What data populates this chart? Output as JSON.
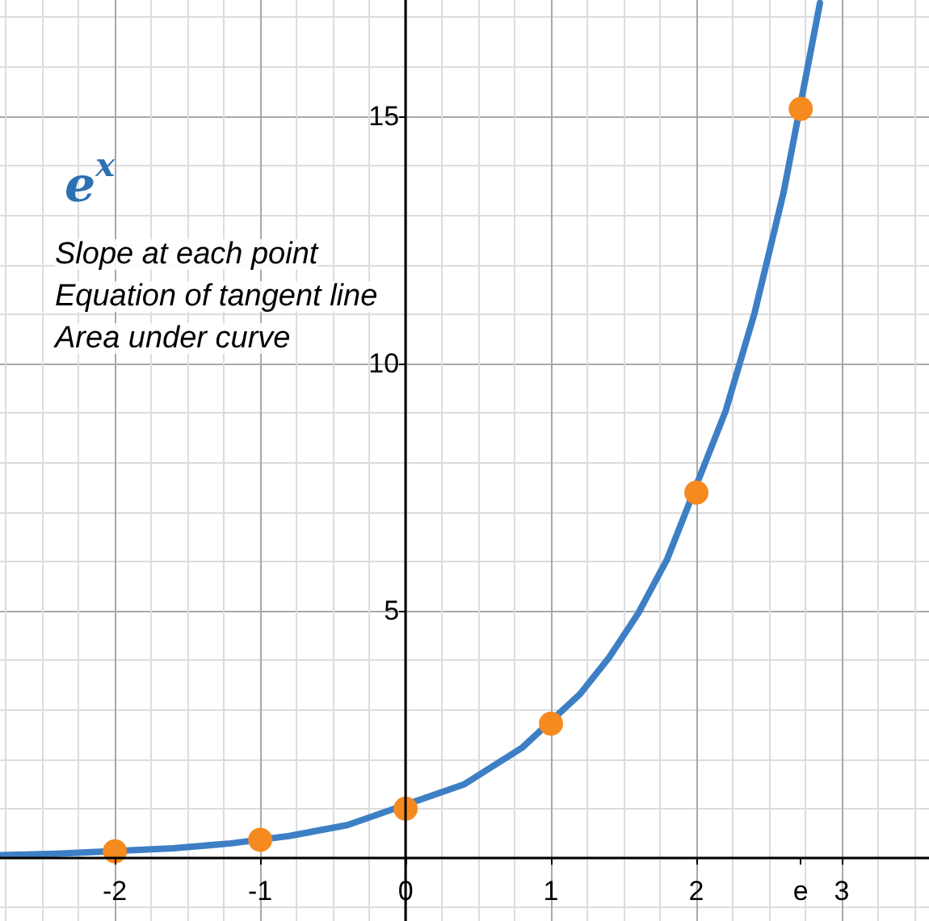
{
  "chart_data": {
    "type": "line",
    "title": "e$^{x}$",
    "annotations": [
      "Slope at each point",
      "Equation of tangent line",
      "Area under curve"
    ],
    "xlim": [
      -2.79,
      3.6
    ],
    "ylim": [
      -1.27,
      17.35
    ],
    "xticks": [
      -2,
      -1,
      0,
      1,
      2,
      {
        "value": 2.718,
        "label": "e"
      },
      3
    ],
    "yticks": [
      5,
      10,
      15
    ],
    "grid": true,
    "series": [
      {
        "color": "#3d7fc4",
        "marker": "none",
        "x": [
          -2.79,
          -2.4,
          -1.6,
          -1.2,
          -0.8,
          -0.4,
          0.4,
          0.8,
          1.2,
          1.4,
          1.6,
          1.8,
          2.2,
          2.4,
          2.6,
          2.85
        ],
        "values": [
          0.06,
          0.09,
          0.2,
          0.3,
          0.45,
          0.67,
          1.49,
          2.23,
          3.32,
          4.06,
          4.95,
          6.05,
          9.03,
          11.02,
          13.46,
          17.29
        ]
      },
      {
        "type": "scatter",
        "color": "#f58a1f",
        "marker": "circle",
        "x": [
          -2,
          -1,
          0,
          1,
          2,
          2.718
        ],
        "values": [
          0.14,
          0.37,
          1,
          2.72,
          7.39,
          15.15
        ]
      }
    ]
  }
}
